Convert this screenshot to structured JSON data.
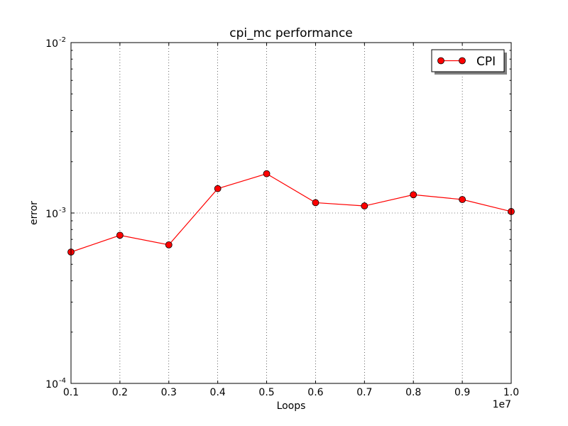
{
  "chart_data": {
    "type": "line",
    "title": "cpi_mc performance",
    "xlabel": "Loops",
    "ylabel": "error",
    "x_offset_label": "1e7",
    "x_scale_multiplier": 10000000,
    "xlim": [
      0.1,
      1.0
    ],
    "ylim": [
      0.0001,
      0.01
    ],
    "yscale": "log",
    "grid": true,
    "legend_position": "upper-right",
    "x_ticks": [
      "0.1",
      "0.2",
      "0.3",
      "0.4",
      "0.5",
      "0.6",
      "0.7",
      "0.8",
      "0.9",
      "1.0"
    ],
    "y_ticks": [
      {
        "value": 0.0001,
        "base": "10",
        "exp": "-4"
      },
      {
        "value": 0.001,
        "base": "10",
        "exp": "-3"
      },
      {
        "value": 0.01,
        "base": "10",
        "exp": "-2"
      }
    ],
    "series": [
      {
        "name": "CPI",
        "color": "#ff0000",
        "marker": "circle",
        "x": [
          0.1,
          0.2,
          0.3,
          0.4,
          0.5,
          0.6,
          0.7,
          0.8,
          0.9,
          1.0
        ],
        "y": [
          0.00059,
          0.00074,
          0.00065,
          0.00139,
          0.0017,
          0.00115,
          0.0011,
          0.00128,
          0.0012,
          0.00102
        ]
      }
    ]
  }
}
